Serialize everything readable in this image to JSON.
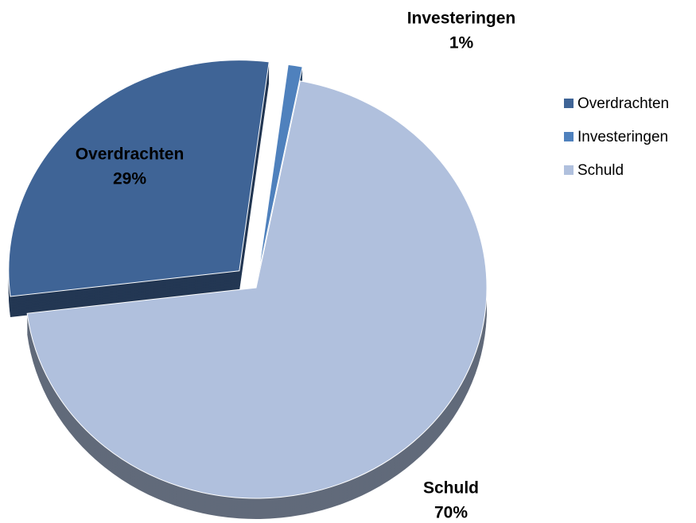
{
  "chart_data": {
    "type": "pie",
    "categories": [
      "Overdrachten",
      "Investeringen",
      "Schuld"
    ],
    "values": [
      29,
      1,
      70
    ],
    "value_labels": [
      "29%",
      "1%",
      "70%"
    ],
    "colors": [
      "#3f6496",
      "#4f81bd",
      "#b0c0dd"
    ],
    "legend": "right"
  }
}
